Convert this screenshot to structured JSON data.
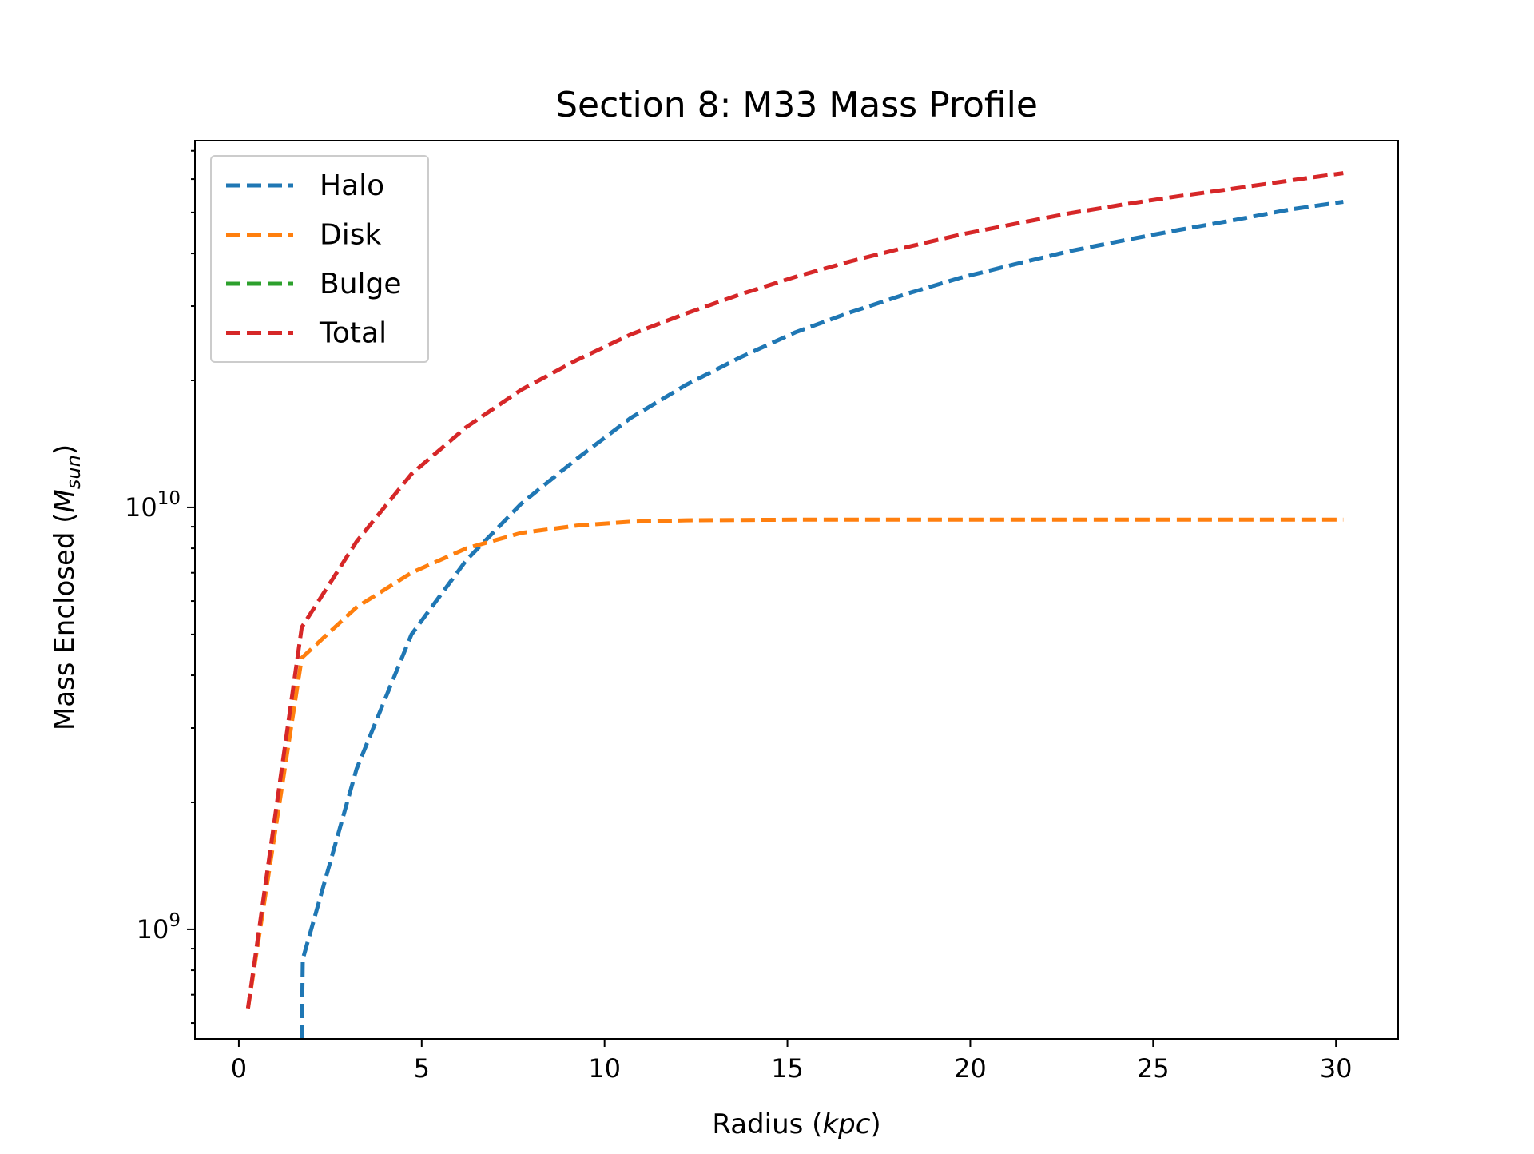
{
  "chart_data": {
    "type": "line",
    "title": "Section 8: M33 Mass Profile",
    "xlabel": {
      "text": "Radius (",
      "italic": "kpc",
      "close": ")"
    },
    "ylabel": {
      "text": "Mass Enclosed (",
      "italic": "M",
      "subscript": "sun",
      "close": ")"
    },
    "xlim": [
      -1.2,
      31.7
    ],
    "ylim": [
      550000000,
      74000000000
    ],
    "yscale": "log",
    "xticks": [
      0,
      5,
      10,
      15,
      20,
      25,
      30
    ],
    "xtick_labels": [
      "0",
      "5",
      "10",
      "15",
      "20",
      "25",
      "30"
    ],
    "yticks_major": [
      {
        "value": 1000000000,
        "base": "10",
        "exp": "9"
      },
      {
        "value": 10000000000,
        "base": "10",
        "exp": "10"
      }
    ],
    "legend_position": "upper-left",
    "grid": false,
    "line_style": "dashed",
    "series": [
      {
        "name": "Halo",
        "color": "#1f77b4",
        "x": [
          1.72,
          1.75,
          3.22,
          4.72,
          6.22,
          7.72,
          9.22,
          10.72,
          12.22,
          13.72,
          15.22,
          16.72,
          18.22,
          19.72,
          21.22,
          22.72,
          24.22,
          25.72,
          27.22,
          28.72,
          30.2
        ],
        "y": [
          550000000,
          850000000,
          2400000000,
          5000000000,
          7500000000,
          10200000000,
          13000000000,
          16300000000,
          19500000000,
          22700000000,
          26000000000,
          29000000000,
          32000000000,
          35000000000,
          37700000000,
          40500000000,
          43000000000,
          45500000000,
          48000000000,
          50800000000,
          53000000000
        ]
      },
      {
        "name": "Disk",
        "color": "#ff7f0e",
        "x": [
          0.25,
          1.72,
          3.22,
          4.72,
          6.22,
          7.72,
          9.22,
          10.72,
          12.22,
          15.22,
          20.22,
          25.22,
          30.2
        ],
        "y": [
          650000000,
          4400000000,
          5800000000,
          7000000000,
          8000000000,
          8700000000,
          9050000000,
          9250000000,
          9320000000,
          9350000000,
          9350000000,
          9350000000,
          9350000000
        ]
      },
      {
        "name": "Bulge",
        "color": "#2ca02c",
        "x": [],
        "y": []
      },
      {
        "name": "Total",
        "color": "#d62728",
        "x": [
          0.25,
          1.72,
          3.22,
          4.72,
          6.22,
          7.72,
          9.22,
          10.72,
          12.22,
          13.72,
          15.22,
          16.72,
          18.22,
          19.72,
          21.22,
          22.72,
          24.22,
          25.72,
          27.22,
          28.72,
          30.2
        ],
        "y": [
          650000000,
          5200000000,
          8300000000,
          12000000000,
          15500000000,
          19000000000,
          22300000000,
          25700000000,
          28800000000,
          32000000000,
          35200000000,
          38300000000,
          41300000000,
          44300000000,
          47000000000,
          49800000000,
          52300000000,
          54700000000,
          57000000000,
          59500000000,
          62000000000
        ]
      }
    ]
  }
}
